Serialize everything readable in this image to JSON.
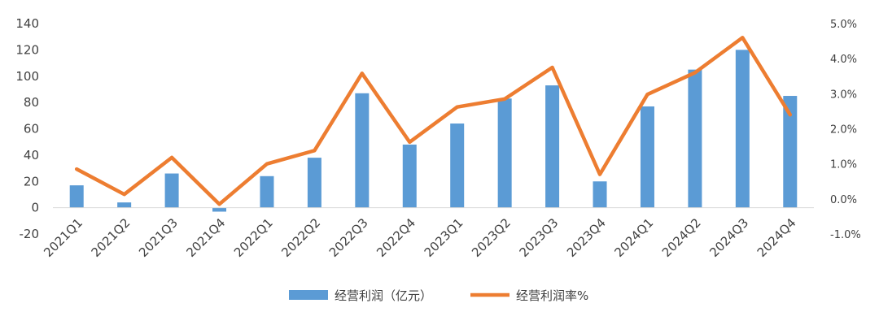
{
  "chart_data": {
    "type": "bar+line",
    "categories": [
      "2021Q1",
      "2021Q2",
      "2021Q3",
      "2021Q4",
      "2022Q1",
      "2022Q2",
      "2022Q3",
      "2022Q4",
      "2023Q1",
      "2023Q2",
      "2023Q3",
      "2023Q4",
      "2024Q1",
      "2024Q2",
      "2024Q3",
      "2024Q4"
    ],
    "series": [
      {
        "name": "经营利润（亿元）",
        "type": "bar",
        "axis": "left",
        "color": "#5B9BD5",
        "values": [
          17,
          4,
          26,
          -3,
          24,
          38,
          87,
          48,
          64,
          83,
          93,
          20,
          77,
          105,
          120,
          85
        ]
      },
      {
        "name": "经营利润率%",
        "type": "line",
        "axis": "right",
        "color": "#ED7D31",
        "values": [
          0.85,
          0.13,
          1.18,
          -0.15,
          1.0,
          1.38,
          3.58,
          1.62,
          2.62,
          2.85,
          3.75,
          0.7,
          2.98,
          3.6,
          4.6,
          2.4
        ]
      }
    ],
    "y_left": {
      "ylim": [
        -20,
        140
      ],
      "ticks": [
        "-20",
        "0",
        "20",
        "40",
        "60",
        "80",
        "100",
        "120",
        "140"
      ]
    },
    "y_right": {
      "ylim": [
        -1.0,
        5.0
      ],
      "ticks": [
        "-1.0%",
        "0.0%",
        "1.0%",
        "2.0%",
        "3.0%",
        "4.0%",
        "5.0%"
      ]
    },
    "grid": false,
    "legend_position": "bottom",
    "title": "",
    "xlabel": "",
    "ylabel": ""
  }
}
